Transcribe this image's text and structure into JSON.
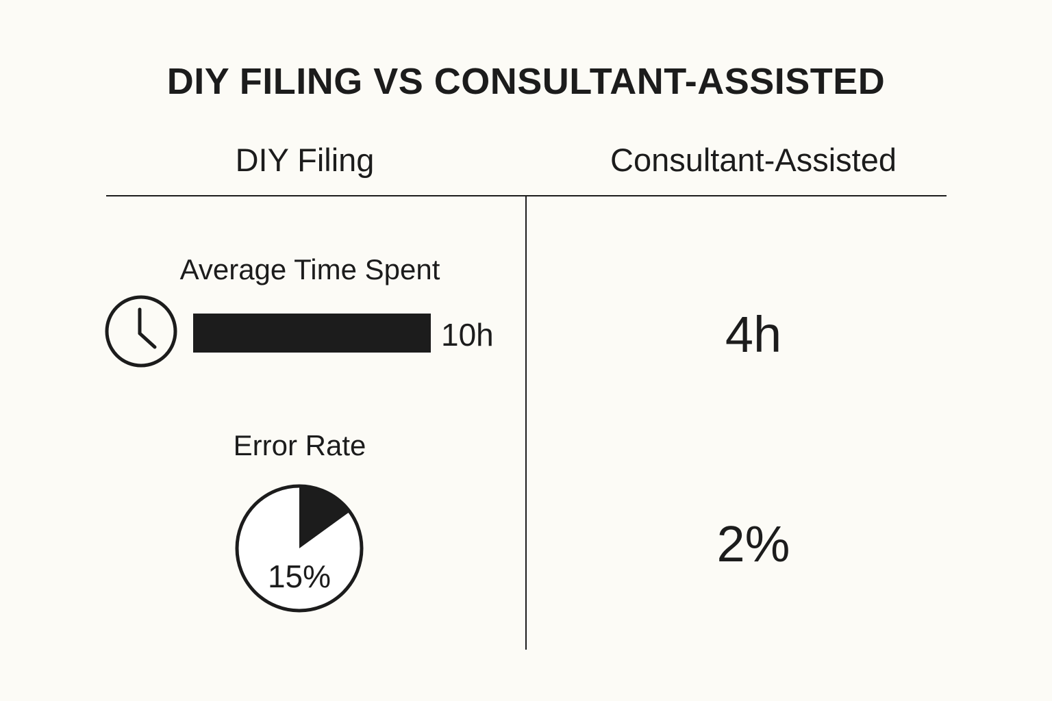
{
  "title": "DIY FILING VS CONSULTANT-ASSISTED",
  "columns": {
    "left": "DIY Filing",
    "right": "Consultant-Assisted"
  },
  "metrics": {
    "time": {
      "label": "Average Time Spent",
      "icon": "clock-icon",
      "diy_value": "10h",
      "diy_hours": 10,
      "consultant_value": "4h",
      "consultant_hours": 4
    },
    "error": {
      "label": "Error Rate",
      "diy_value": "15%",
      "diy_fraction": 0.15,
      "consultant_value": "2%",
      "consultant_fraction": 0.02
    }
  },
  "colors": {
    "background": "#fcfbf6",
    "ink": "#1c1c1c"
  }
}
